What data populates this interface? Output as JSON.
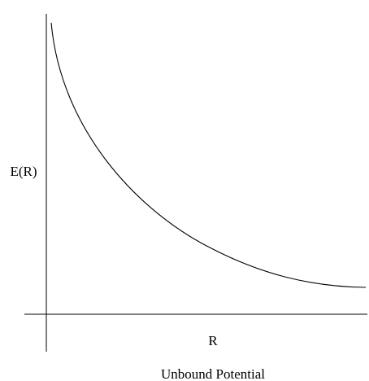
{
  "diagram": {
    "caption": "Unbound Potential",
    "axis_y_label": "E(R)",
    "axis_x_label": "R",
    "line_color": "#000000",
    "background_color": "#ffffff",
    "curve_shape": "monotonically decreasing, approaching a positive asymptote as R increases"
  }
}
